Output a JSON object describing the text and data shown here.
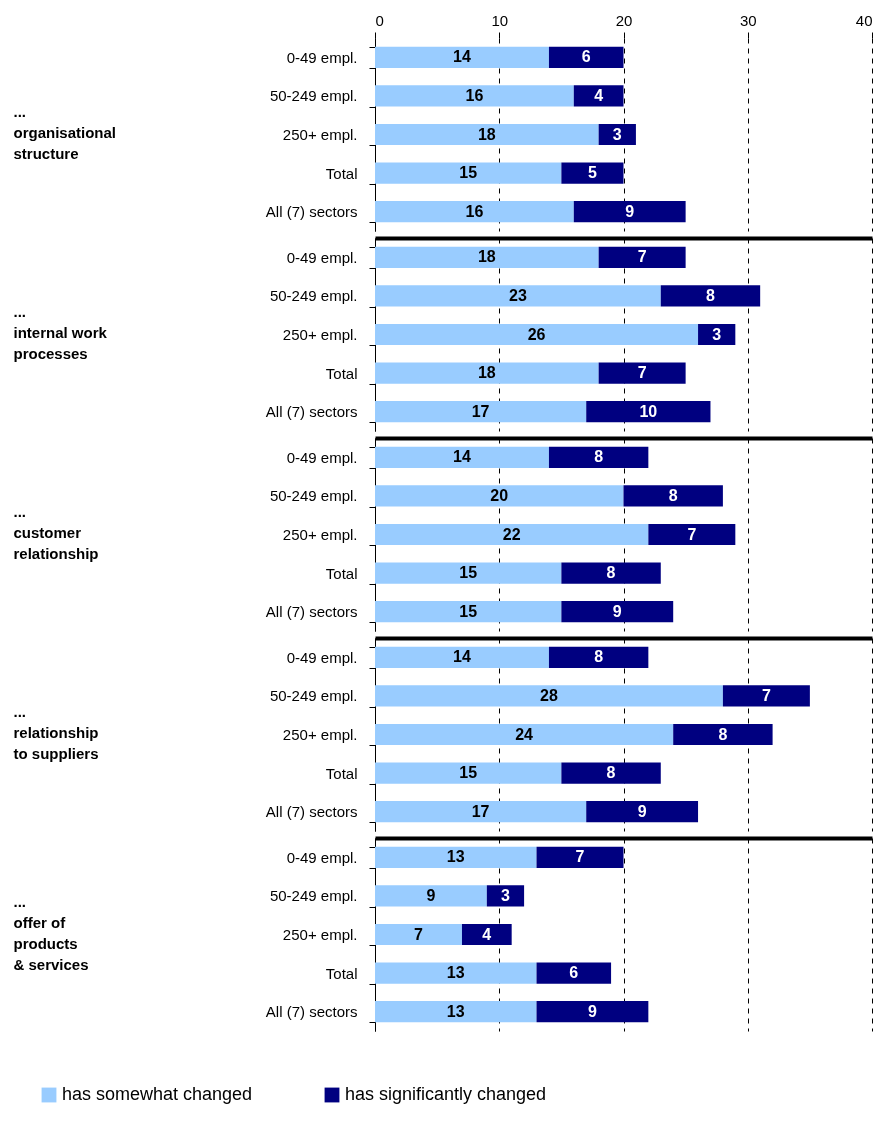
{
  "chart_data": [
    {
      "type": "bar",
      "orientation": "horizontal",
      "stacked": true,
      "ylabel": "...\norganisational\nstructure",
      "categories": [
        "0-49 empl.",
        "50-249 empl.",
        "250+ empl.",
        "Total",
        "All (7) sectors"
      ],
      "xlim": [
        0,
        40
      ],
      "xticks": [
        0,
        10,
        20,
        30,
        40
      ],
      "grid": "x",
      "data_labels": true,
      "legend": false,
      "series": [
        {
          "color": "#99ccff",
          "values": [
            14,
            16,
            18,
            15,
            16
          ]
        },
        {
          "color": "#000080",
          "values": [
            6,
            4,
            3,
            5,
            9
          ]
        }
      ]
    },
    {
      "type": "bar",
      "orientation": "horizontal",
      "stacked": true,
      "ylabel": "...\ninternal work\nprocesses",
      "categories": [
        "0-49 empl.",
        "50-249 empl.",
        "250+ empl.",
        "Total",
        "All (7) sectors"
      ],
      "xlim": [
        0,
        40
      ],
      "xticks": [
        0,
        10,
        20,
        30,
        40
      ],
      "tick_labels": "y",
      "grid": "x",
      "data_labels": true,
      "legend": false,
      "series": [
        {
          "color": "#99ccff",
          "values": [
            18,
            23,
            26,
            18,
            17
          ]
        },
        {
          "color": "#000080",
          "values": [
            7,
            8,
            3,
            7,
            10
          ]
        }
      ]
    },
    {
      "type": "bar",
      "orientation": "horizontal",
      "stacked": true,
      "ylabel": "...\ncustomer\nrelationship",
      "categories": [
        "0-49 empl.",
        "50-249 empl.",
        "250+ empl.",
        "Total",
        "All (7) sectors"
      ],
      "xlim": [
        0,
        40
      ],
      "xticks": [
        0,
        10,
        20,
        30,
        40
      ],
      "tick_labels": "y",
      "grid": "x",
      "data_labels": true,
      "legend": false,
      "series": [
        {
          "color": "#99ccff",
          "values": [
            14,
            20,
            22,
            15,
            15
          ]
        },
        {
          "color": "#000080",
          "values": [
            8,
            8,
            7,
            8,
            9
          ]
        }
      ]
    },
    {
      "type": "bar",
      "orientation": "horizontal",
      "stacked": true,
      "ylabel": "...\nrelationship\nto suppliers",
      "categories": [
        "0-49 empl.",
        "50-249 empl.",
        "250+ empl.",
        "Total",
        "All (7) sectors"
      ],
      "xlim": [
        0,
        40
      ],
      "xticks": [
        0,
        10,
        20,
        30,
        40
      ],
      "tick_labels": "y",
      "grid": "x",
      "data_labels": true,
      "legend": false,
      "series": [
        {
          "color": "#99ccff",
          "values": [
            14,
            28,
            24,
            15,
            17
          ]
        },
        {
          "color": "#000080",
          "values": [
            8,
            7,
            8,
            8,
            9
          ]
        }
      ]
    },
    {
      "type": "bar",
      "orientation": "horizontal",
      "stacked": true,
      "ylabel": "...\noffer of\nproducts\n& services",
      "categories": [
        "0-49 empl.",
        "50-249 empl.",
        "250+ empl.",
        "Total",
        "All (7) sectors"
      ],
      "xlim": [
        0,
        40
      ],
      "xticks": [
        0,
        10,
        20,
        30,
        40
      ],
      "tick_labels": "y",
      "grid": "x",
      "data_labels": true,
      "legend": "bottom",
      "series": [
        {
          "name": "has somewhat changed",
          "color": "#99ccff",
          "values": [
            13,
            9,
            7,
            13,
            13
          ]
        },
        {
          "name": "has significantly changed",
          "color": "#000080",
          "values": [
            7,
            3,
            4,
            6,
            9
          ]
        }
      ]
    }
  ]
}
